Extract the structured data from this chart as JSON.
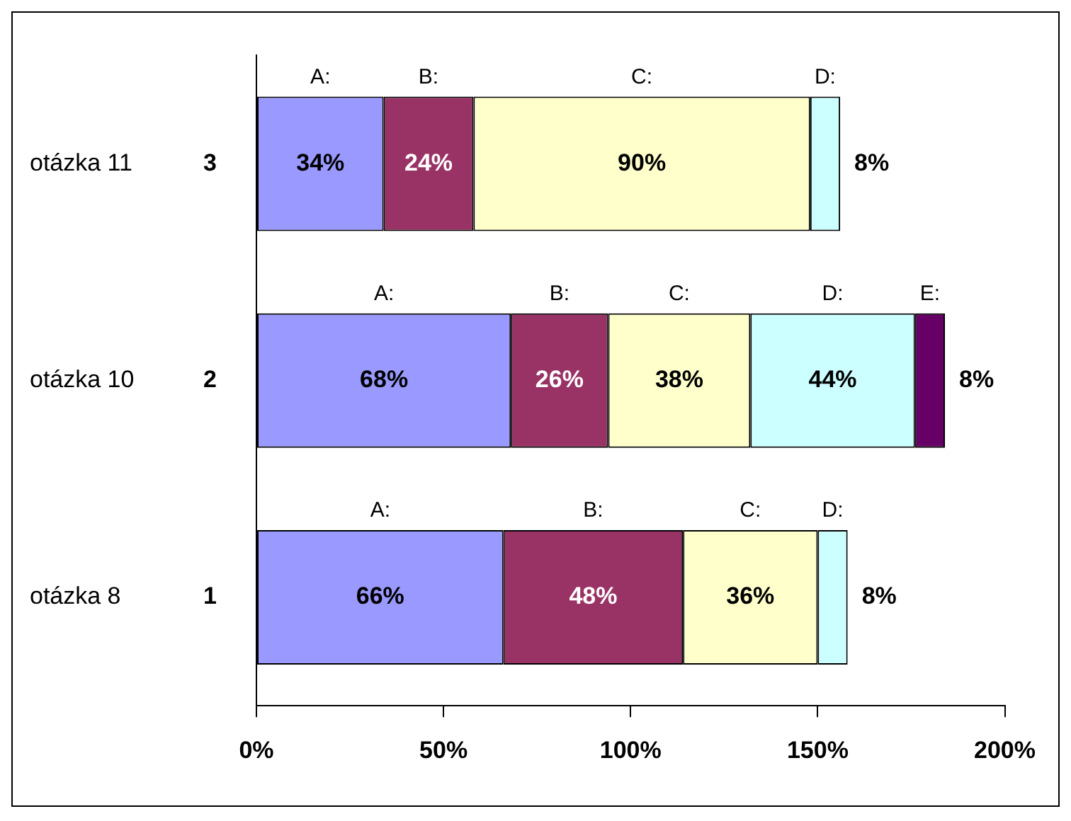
{
  "chart_data": {
    "type": "bar",
    "orientation": "horizontal",
    "stacked": true,
    "categories": [
      "3",
      "2",
      "1"
    ],
    "annotations": [
      "otázka 11",
      "otázka 10",
      "otázka 8"
    ],
    "series": [
      {
        "name": "A:",
        "color": "#9999ff",
        "values": [
          34,
          68,
          66
        ],
        "value_labels": [
          "34%",
          "68%",
          "66%"
        ]
      },
      {
        "name": "B:",
        "color": "#993366",
        "values": [
          24,
          26,
          48
        ],
        "value_labels": [
          "24%",
          "26%",
          "48%"
        ]
      },
      {
        "name": "C:",
        "color": "#ffffcc",
        "values": [
          90,
          38,
          36
        ],
        "value_labels": [
          "90%",
          "38%",
          "36%"
        ]
      },
      {
        "name": "D:",
        "color": "#ccffff",
        "values": [
          8,
          44,
          8
        ],
        "value_labels": [
          "8%",
          "44%",
          "8%"
        ]
      },
      {
        "name": "E:",
        "color": "#660066",
        "values": [
          null,
          8,
          null
        ],
        "value_labels": [
          null,
          "8%",
          null
        ]
      }
    ],
    "xlim": [
      0,
      200
    ],
    "xticks": [
      {
        "value": 0,
        "label": "0%"
      },
      {
        "value": 50,
        "label": "50%"
      },
      {
        "value": 100,
        "label": "100%"
      },
      {
        "value": 150,
        "label": "150%"
      },
      {
        "value": 200,
        "label": "200%"
      }
    ],
    "grid": false,
    "legend": false
  }
}
